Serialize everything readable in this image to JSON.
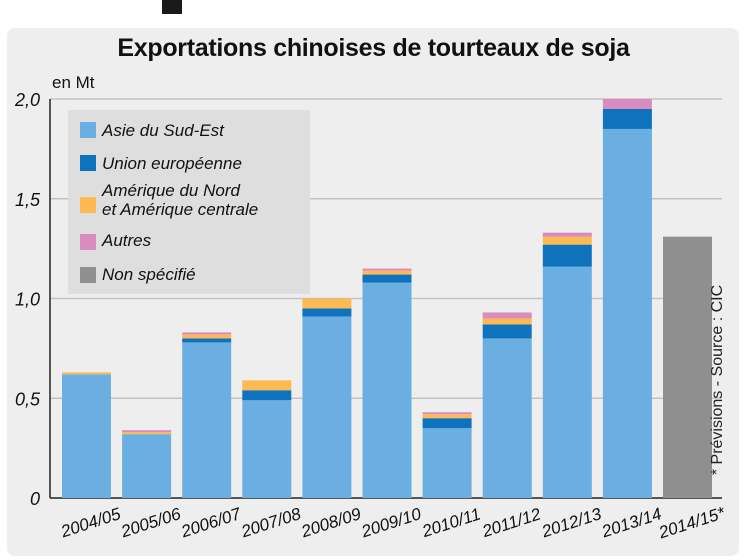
{
  "colors": {
    "asie": "#6aaee2",
    "ue": "#0f72bd",
    "amerique": "#fdba53",
    "autres": "#d98cc0",
    "non_specifie": "#8f8f8f"
  },
  "chart_data": {
    "type": "bar",
    "stacked": true,
    "title": "Exportations chinoises de tourteaux de soja",
    "ylabel": "en Mt",
    "ylim": [
      0,
      2.0
    ],
    "yticks": [
      "0",
      "0,5",
      "1,0",
      "1,5",
      "2,0"
    ],
    "ytick_values": [
      0,
      0.5,
      1.0,
      1.5,
      2.0
    ],
    "grid": true,
    "legend_position": "top-left",
    "categories": [
      "2004/05",
      "2005/06",
      "2006/07",
      "2007/08",
      "2008/09",
      "2009/10",
      "2010/11",
      "2011/12",
      "2012/13",
      "2013/14",
      "2014/15*"
    ],
    "series": [
      {
        "name": "Asie du Sud-Est",
        "color_key": "asie",
        "values": [
          0.62,
          0.32,
          0.78,
          0.49,
          0.91,
          1.08,
          0.35,
          0.8,
          1.16,
          1.85,
          0
        ]
      },
      {
        "name": "Union européenne",
        "color_key": "ue",
        "values": [
          0.0,
          0.0,
          0.02,
          0.05,
          0.04,
          0.04,
          0.05,
          0.07,
          0.11,
          0.1,
          0
        ]
      },
      {
        "name": "Amérique du Nord\net Amérique centrale",
        "color_key": "amerique",
        "values": [
          0.01,
          0.01,
          0.02,
          0.05,
          0.05,
          0.02,
          0.02,
          0.03,
          0.04,
          0.0,
          0
        ]
      },
      {
        "name": "Autres",
        "color_key": "autres",
        "values": [
          0.0,
          0.01,
          0.01,
          0.0,
          0.0,
          0.01,
          0.01,
          0.03,
          0.02,
          0.05,
          0
        ]
      },
      {
        "name": "Non spécifié",
        "color_key": "non_specifie",
        "values": [
          0,
          0,
          0,
          0,
          0,
          0,
          0,
          0,
          0,
          0,
          1.31
        ]
      }
    ],
    "source_note": "* Prévisions - Source : CIC"
  }
}
